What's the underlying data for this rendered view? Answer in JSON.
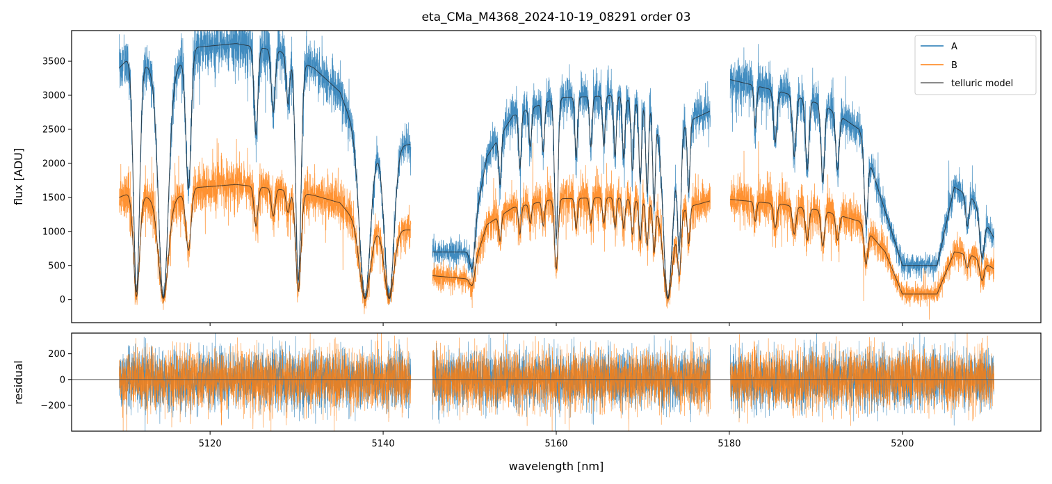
{
  "chart_data": {
    "type": "line",
    "title": "eta_CMa_M4368_2024-10-19_08291  order 03",
    "xlabel": "wavelength [nm]",
    "xlim": [
      5104,
      5216
    ],
    "xticks": [
      5120,
      5140,
      5160,
      5180,
      5200
    ],
    "colors": {
      "A": "#1f77b4",
      "B": "#ff7f0e",
      "telluric model": "#222222"
    },
    "segments": [
      [
        5109.5,
        5143.2
      ],
      [
        5145.7,
        5177.8
      ],
      [
        5180.1,
        5210.6
      ]
    ],
    "panels": [
      {
        "name": "flux",
        "ylabel": "flux [ADU]",
        "ylim": [
          -340,
          3950
        ],
        "yticks": [
          0,
          500,
          1000,
          1500,
          2000,
          2500,
          3000,
          3500
        ],
        "legend": {
          "position": "top-right",
          "entries": [
            "A",
            "B",
            "telluric model"
          ]
        },
        "series": [
          {
            "name": "A",
            "kind": "noisy",
            "color": "#1f77b4",
            "continuum_points": [
              [
                5109.5,
                3400
              ],
              [
                5111,
                3600
              ],
              [
                5115,
                3200
              ],
              [
                5118,
                3700
              ],
              [
                5123,
                3760
              ],
              [
                5128,
                3650
              ],
              [
                5132,
                3400
              ],
              [
                5135,
                3050
              ],
              [
                5137.5,
                2200
              ],
              [
                5143.2,
                2280
              ],
              [
                5145.7,
                700
              ],
              [
                5150,
                700
              ],
              [
                5152,
                2100
              ],
              [
                5155,
                2700
              ],
              [
                5160,
                2960
              ],
              [
                5167,
                3000
              ],
              [
                5171,
                2800
              ],
              [
                5173.5,
                2100
              ],
              [
                5175,
                2600
              ],
              [
                5177.8,
                2770
              ],
              [
                5180.1,
                3230
              ],
              [
                5186,
                3050
              ],
              [
                5191,
                2850
              ],
              [
                5195,
                2500
              ],
              [
                5198,
                1300
              ],
              [
                5200,
                500
              ],
              [
                5204,
                500
              ],
              [
                5206,
                1650
              ],
              [
                5208,
                1500
              ],
              [
                5210.6,
                900
              ]
            ]
          },
          {
            "name": "B",
            "kind": "noisy",
            "color": "#ff7f0e",
            "continuum_points": [
              [
                5109.5,
                1500
              ],
              [
                5111,
                1580
              ],
              [
                5115,
                1400
              ],
              [
                5118,
                1640
              ],
              [
                5123,
                1690
              ],
              [
                5128,
                1620
              ],
              [
                5132,
                1530
              ],
              [
                5135,
                1420
              ],
              [
                5137.5,
                1050
              ],
              [
                5143.2,
                1020
              ],
              [
                5145.7,
                350
              ],
              [
                5150,
                300
              ],
              [
                5152,
                1100
              ],
              [
                5155,
                1350
              ],
              [
                5160,
                1480
              ],
              [
                5167,
                1500
              ],
              [
                5171,
                1420
              ],
              [
                5173.5,
                1050
              ],
              [
                5175,
                1350
              ],
              [
                5177.8,
                1450
              ],
              [
                5180.1,
                1470
              ],
              [
                5186,
                1400
              ],
              [
                5191,
                1300
              ],
              [
                5195,
                1150
              ],
              [
                5198,
                700
              ],
              [
                5200,
                80
              ],
              [
                5204,
                80
              ],
              [
                5206,
                700
              ],
              [
                5208,
                650
              ],
              [
                5210.6,
                450
              ]
            ]
          },
          {
            "name": "telluric model",
            "kind": "model",
            "color": "#222222"
          }
        ],
        "absorption_lines": [
          {
            "center": 5111.5,
            "width": 0.35,
            "depth": 0.97
          },
          {
            "center": 5114.6,
            "width": 0.55,
            "depth": 0.99
          },
          {
            "center": 5117.5,
            "width": 0.3,
            "depth": 0.55
          },
          {
            "center": 5125.3,
            "width": 0.22,
            "depth": 0.35
          },
          {
            "center": 5127.3,
            "width": 0.22,
            "depth": 0.25
          },
          {
            "center": 5129.0,
            "width": 0.2,
            "depth": 0.2
          },
          {
            "center": 5130.2,
            "width": 0.3,
            "depth": 0.92
          },
          {
            "center": 5137.9,
            "width": 0.6,
            "depth": 0.99
          },
          {
            "center": 5140.7,
            "width": 0.55,
            "depth": 0.99
          },
          {
            "center": 5150.3,
            "width": 0.25,
            "depth": 0.5
          },
          {
            "center": 5153.5,
            "width": 0.15,
            "depth": 0.3
          },
          {
            "center": 5155.8,
            "width": 0.15,
            "depth": 0.3
          },
          {
            "center": 5157.0,
            "width": 0.15,
            "depth": 0.2
          },
          {
            "center": 5158.5,
            "width": 0.15,
            "depth": 0.25
          },
          {
            "center": 5160.0,
            "width": 0.2,
            "depth": 0.7
          },
          {
            "center": 5162.3,
            "width": 0.15,
            "depth": 0.3
          },
          {
            "center": 5164.0,
            "width": 0.15,
            "depth": 0.25
          },
          {
            "center": 5165.5,
            "width": 0.15,
            "depth": 0.25
          },
          {
            "center": 5166.8,
            "width": 0.15,
            "depth": 0.3
          },
          {
            "center": 5167.8,
            "width": 0.15,
            "depth": 0.3
          },
          {
            "center": 5168.8,
            "width": 0.15,
            "depth": 0.35
          },
          {
            "center": 5169.7,
            "width": 0.15,
            "depth": 0.4
          },
          {
            "center": 5170.5,
            "width": 0.15,
            "depth": 0.45
          },
          {
            "center": 5171.3,
            "width": 0.15,
            "depth": 0.5
          },
          {
            "center": 5172.9,
            "width": 0.5,
            "depth": 0.99
          },
          {
            "center": 5174.2,
            "width": 0.2,
            "depth": 0.7
          },
          {
            "center": 5175.3,
            "width": 0.15,
            "depth": 0.4
          },
          {
            "center": 5183.0,
            "width": 0.15,
            "depth": 0.2
          },
          {
            "center": 5185.3,
            "width": 0.2,
            "depth": 0.25
          },
          {
            "center": 5187.5,
            "width": 0.2,
            "depth": 0.3
          },
          {
            "center": 5189.0,
            "width": 0.2,
            "depth": 0.35
          },
          {
            "center": 5190.8,
            "width": 0.2,
            "depth": 0.4
          },
          {
            "center": 5192.5,
            "width": 0.2,
            "depth": 0.3
          },
          {
            "center": 5195.8,
            "width": 0.2,
            "depth": 0.5
          },
          {
            "center": 5207.5,
            "width": 0.2,
            "depth": 0.3
          },
          {
            "center": 5209.2,
            "width": 0.25,
            "depth": 0.5
          }
        ]
      },
      {
        "name": "residual",
        "ylabel": "residual",
        "ylim": [
          -400,
          360
        ],
        "yticks": [
          -200,
          0,
          200
        ],
        "zero_line": true,
        "noise_scale": {
          "A": 110,
          "B": 115
        }
      }
    ]
  }
}
